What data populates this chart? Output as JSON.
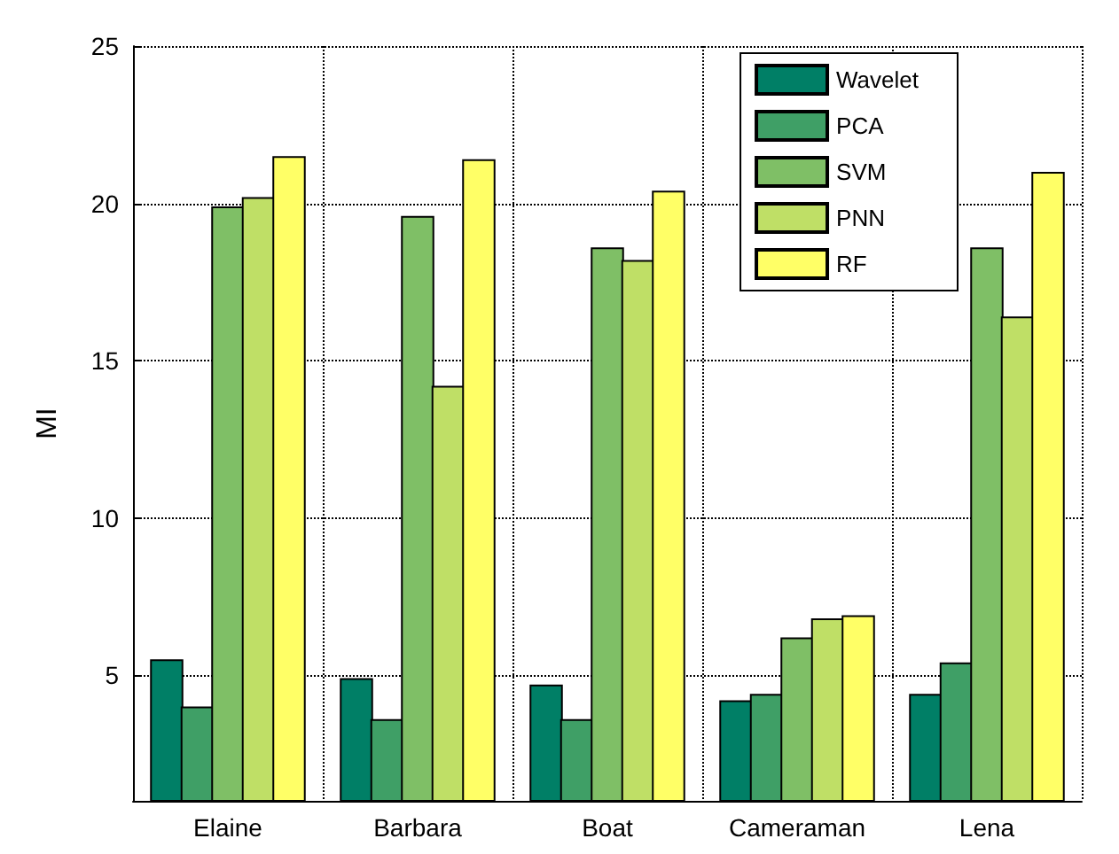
{
  "chart_data": {
    "type": "bar",
    "ylabel": "MI",
    "categories": [
      "Elaine",
      "Barbara",
      "Boat",
      "Cameraman",
      "Lena"
    ],
    "series": [
      {
        "name": "Wavelet",
        "color": "#007f66",
        "values": [
          5.5,
          4.9,
          4.7,
          4.2,
          4.4
        ]
      },
      {
        "name": "PCA",
        "color": "#3f9f66",
        "values": [
          4.0,
          3.6,
          3.6,
          4.4,
          5.4
        ]
      },
      {
        "name": "SVM",
        "color": "#7fbf66",
        "values": [
          19.9,
          19.6,
          18.6,
          6.2,
          18.6
        ]
      },
      {
        "name": "PNN",
        "color": "#bfdf66",
        "values": [
          20.2,
          14.2,
          18.2,
          6.8,
          16.4
        ]
      },
      {
        "name": "RF",
        "color": "#ffff66",
        "values": [
          21.5,
          21.4,
          20.4,
          6.9,
          21.0
        ]
      }
    ],
    "ylim": [
      1,
      25
    ],
    "yticks": [
      5,
      10,
      15,
      20,
      25
    ],
    "grid": true,
    "legend": "top right"
  }
}
